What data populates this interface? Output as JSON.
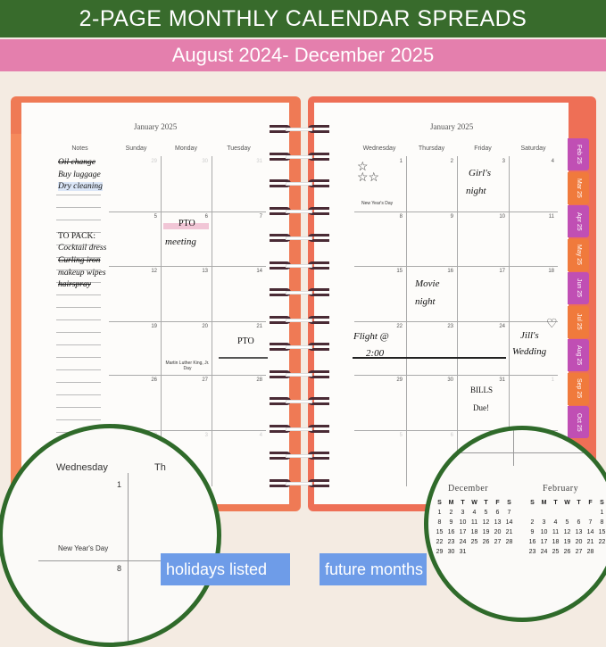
{
  "banner": {
    "title": "2-PAGE MONTHLY CALENDAR SPREADS",
    "subtitle": "August 2024- December 2025"
  },
  "colors": {
    "banner_green": "#386b2c",
    "banner_pink": "#e47fad",
    "cover_orange": "#ef7a55",
    "tab_magenta": "#c04fb4",
    "tab_orange": "#f07a3c",
    "label_blue": "#6e9ce8",
    "circle_green": "#2f6a2a"
  },
  "left_page": {
    "title": "January 2025",
    "notes_header": "Notes",
    "days": [
      "Sunday",
      "Monday",
      "Tuesday"
    ],
    "weeks": [
      [
        "29",
        "30",
        "31"
      ],
      [
        "5",
        "6",
        "7"
      ],
      [
        "12",
        "13",
        "14"
      ],
      [
        "19",
        "20",
        "21"
      ],
      [
        "26",
        "27",
        "28"
      ],
      [
        "2",
        "3",
        "4"
      ]
    ],
    "notes": [
      "Oil change",
      "Buy luggage",
      "Dry cleaning",
      "TO PACK:",
      "Cocktail dress",
      "Curling iron",
      "makeup wipes",
      "hairspray"
    ],
    "events": {
      "pto1": "PTO",
      "meeting": "meeting",
      "pto2": "PTO",
      "mlk": "Martin Luther King, Jr. Day"
    }
  },
  "right_page": {
    "title": "January 2025",
    "days": [
      "Wednesday",
      "Thursday",
      "Friday",
      "Saturday"
    ],
    "weeks": [
      [
        "1",
        "2",
        "3",
        "4"
      ],
      [
        "8",
        "9",
        "10",
        "11"
      ],
      [
        "15",
        "16",
        "17",
        "18"
      ],
      [
        "22",
        "23",
        "24",
        ""
      ],
      [
        "29",
        "30",
        "31",
        "1"
      ],
      [
        "5",
        "6",
        "",
        ""
      ]
    ],
    "events": {
      "new_year": "New Year's Day",
      "girls1": "Girl's",
      "girls2": "night",
      "movie1": "Movie",
      "movie2": "night",
      "flight1": "Flight @",
      "flight2": "2:00",
      "wedding1": "Jill's",
      "wedding2": "Wedding",
      "bills1": "BILLS",
      "bills2": "Due!"
    }
  },
  "tabs": [
    "Feb 25",
    "Mar 25",
    "Apr 25",
    "May 25",
    "Jun 25",
    "Jul 25",
    "Aug 25",
    "Sep 25",
    "Oct 25"
  ],
  "zoom_left": {
    "day": "Wednesday",
    "cut_day": "Th",
    "num1": "1",
    "holiday": "New Year's Day",
    "num2": "8"
  },
  "zoom_right": {
    "weekday_letters": [
      "S",
      "M",
      "T",
      "W",
      "T",
      "F",
      "S"
    ],
    "december": {
      "title": "December",
      "weeks": [
        [
          "1",
          "2",
          "3",
          "4",
          "5",
          "6",
          "7"
        ],
        [
          "8",
          "9",
          "10",
          "11",
          "12",
          "13",
          "14"
        ],
        [
          "15",
          "16",
          "17",
          "18",
          "19",
          "20",
          "21"
        ],
        [
          "22",
          "23",
          "24",
          "25",
          "26",
          "27",
          "28"
        ],
        [
          "29",
          "30",
          "31",
          "",
          "",
          "",
          ""
        ]
      ]
    },
    "february": {
      "title": "February",
      "weeks": [
        [
          "",
          "",
          "",
          "",
          "",
          "",
          "1"
        ],
        [
          "2",
          "3",
          "4",
          "5",
          "6",
          "7",
          "8"
        ],
        [
          "9",
          "10",
          "11",
          "12",
          "13",
          "14",
          "15"
        ],
        [
          "16",
          "17",
          "18",
          "19",
          "20",
          "21",
          "22"
        ],
        [
          "23",
          "24",
          "25",
          "26",
          "27",
          "28",
          ""
        ]
      ]
    }
  },
  "labels": {
    "holidays": "holidays listed",
    "future": "future months"
  }
}
